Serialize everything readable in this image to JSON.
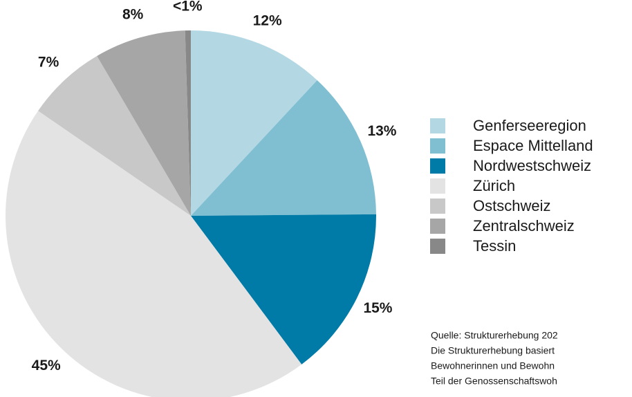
{
  "chart_data": {
    "type": "pie",
    "categories": [
      "Genferseeregion",
      "Espace Mittelland",
      "Nordwestschweiz",
      "Zürich",
      "Ostschweiz",
      "Zentralschweiz",
      "Tessin"
    ],
    "values": [
      12,
      13,
      15,
      45,
      7,
      8,
      0.5
    ],
    "value_labels": [
      "12%",
      "13%",
      "15%",
      "45%",
      "7%",
      "8%",
      "<1%"
    ],
    "colors": [
      "#b3d8e4",
      "#80bfd2",
      "#007aa6",
      "#e3e3e3",
      "#c8c8c8",
      "#a6a6a6",
      "#888888"
    ],
    "legend": "right",
    "source": [
      "Quelle: Strukturerhebung 202",
      "Die Strukturerhebung basiert",
      "Bewohnerinnen und Bewohn",
      "Teil der Genossenschaftswoh"
    ]
  }
}
